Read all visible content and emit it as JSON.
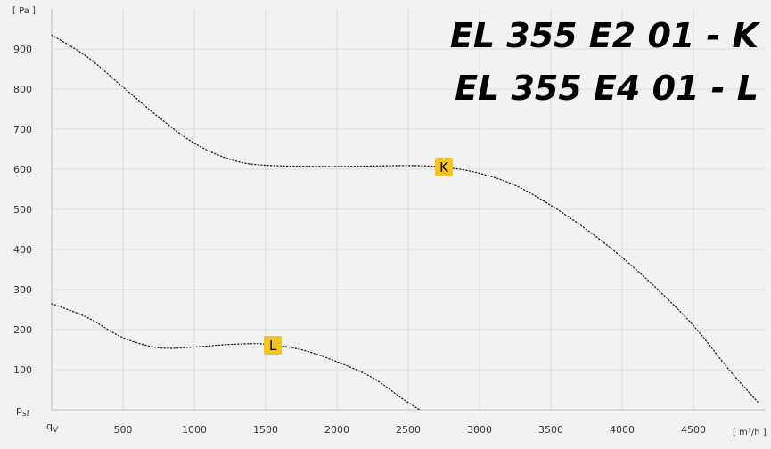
{
  "chart_data": {
    "type": "line",
    "title_lines": [
      "EL 355 E2 01 - K",
      "EL 355 E4 01 - L"
    ],
    "ylabel": "[ Pa ]",
    "xlabel": "[ m³/h ]",
    "y_axis_symbol": "psf",
    "x_axis_symbol": "qV",
    "xlim": [
      0,
      5000
    ],
    "ylim": [
      0,
      1000
    ],
    "x_ticks": [
      500,
      1000,
      1500,
      2000,
      2500,
      3000,
      3500,
      4000,
      4500
    ],
    "y_ticks": [
      100,
      200,
      300,
      400,
      500,
      600,
      700,
      800,
      900
    ],
    "grid": true,
    "series": [
      {
        "name": "K",
        "style": "dotted",
        "color": "#222222",
        "marker_point": [
          2750,
          605
        ],
        "points": [
          [
            0,
            935
          ],
          [
            250,
            880
          ],
          [
            500,
            805
          ],
          [
            750,
            730
          ],
          [
            1000,
            665
          ],
          [
            1250,
            625
          ],
          [
            1500,
            610
          ],
          [
            2000,
            607
          ],
          [
            2500,
            609
          ],
          [
            2750,
            605
          ],
          [
            3000,
            590
          ],
          [
            3250,
            560
          ],
          [
            3500,
            510
          ],
          [
            3750,
            450
          ],
          [
            4000,
            380
          ],
          [
            4250,
            300
          ],
          [
            4500,
            210
          ],
          [
            4750,
            100
          ],
          [
            4950,
            20
          ]
        ]
      },
      {
        "name": "L",
        "style": "dotted",
        "color": "#222222",
        "marker_point": [
          1550,
          160
        ],
        "points": [
          [
            0,
            265
          ],
          [
            250,
            230
          ],
          [
            500,
            180
          ],
          [
            750,
            155
          ],
          [
            1000,
            157
          ],
          [
            1250,
            163
          ],
          [
            1500,
            164
          ],
          [
            1750,
            150
          ],
          [
            2000,
            120
          ],
          [
            2250,
            80
          ],
          [
            2450,
            30
          ],
          [
            2580,
            0
          ]
        ]
      }
    ],
    "marker_color": "#f5c518"
  }
}
